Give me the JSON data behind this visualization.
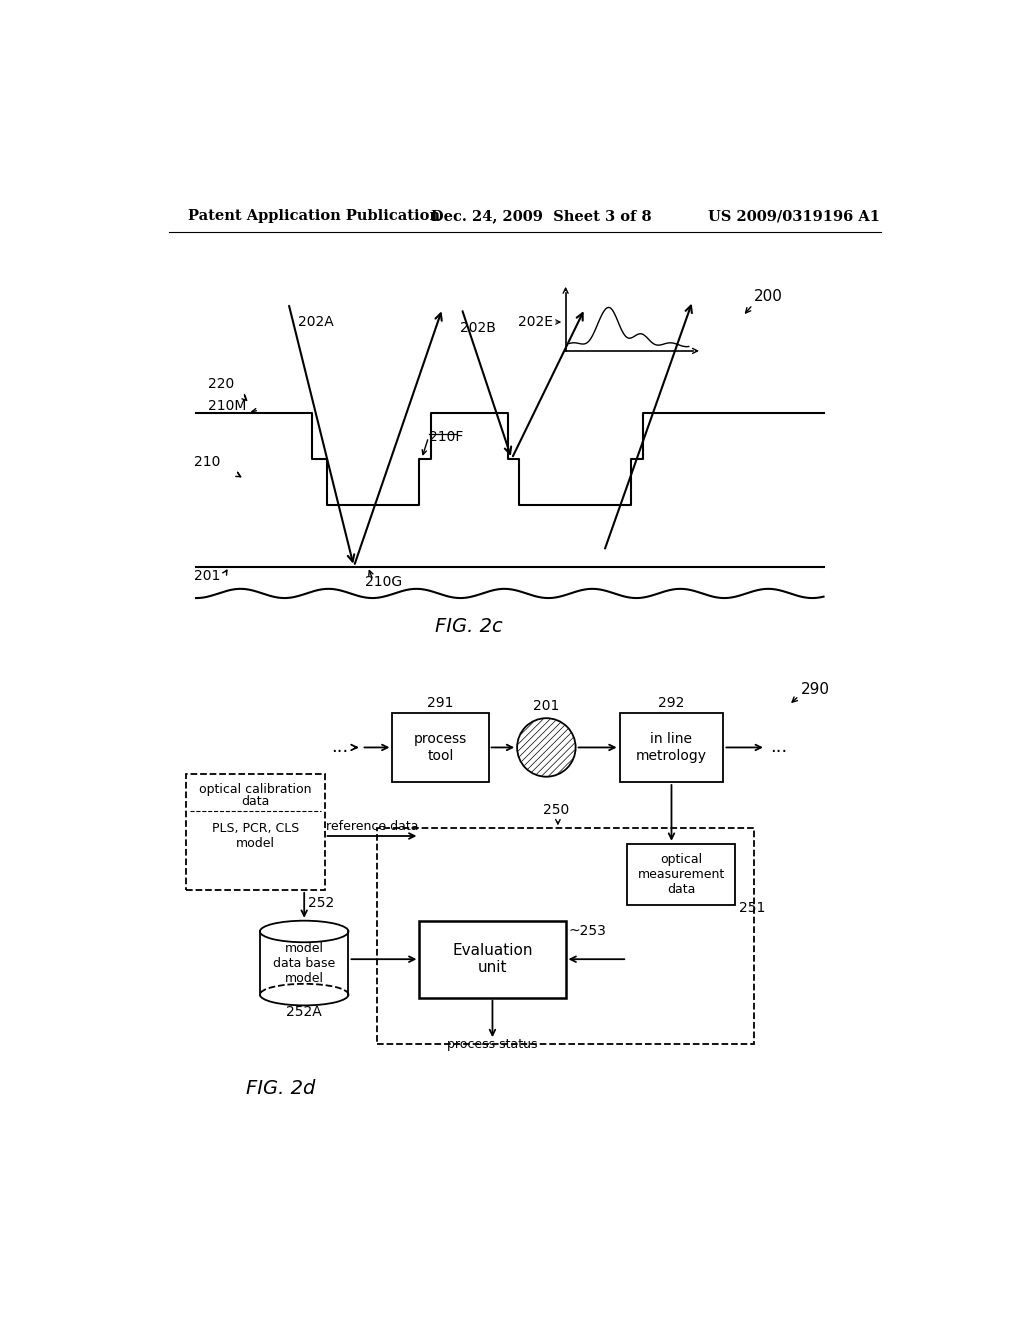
{
  "bg_color": "#ffffff",
  "header_left": "Patent Application Publication",
  "header_mid": "Dec. 24, 2009  Sheet 3 of 8",
  "header_right": "US 2009/0319196 A1",
  "fig2c_label": "FIG. 2c",
  "fig2d_label": "FIG. 2d"
}
